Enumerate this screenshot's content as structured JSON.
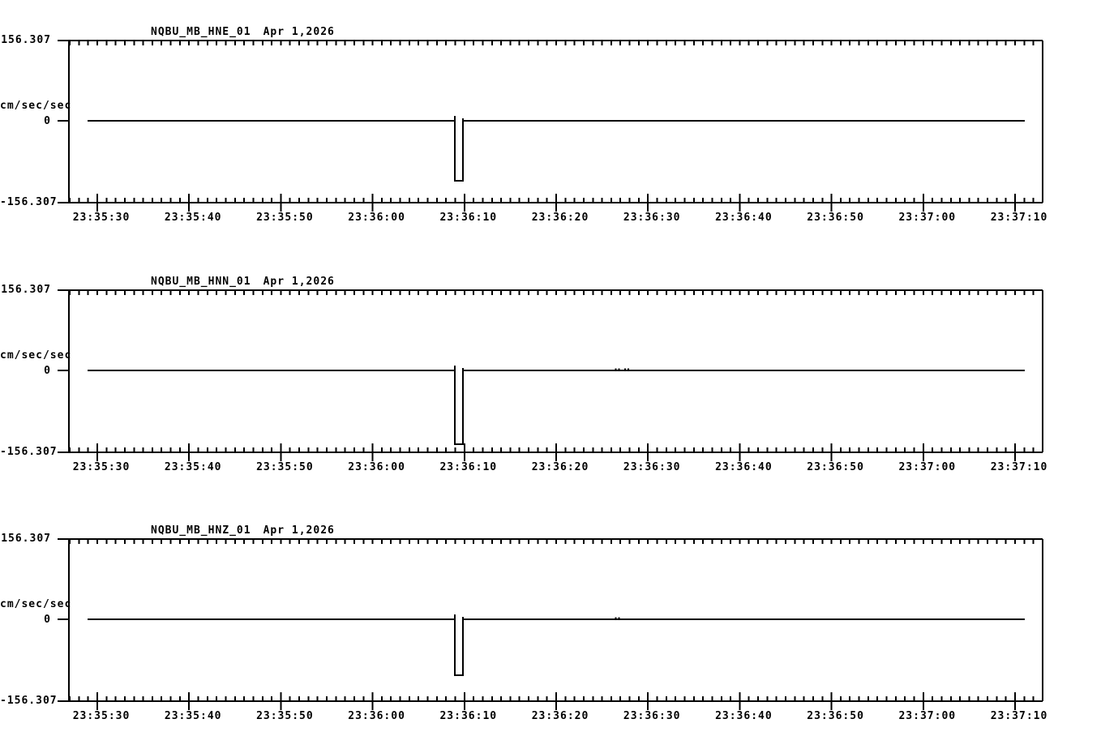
{
  "page": {
    "background_color": "#ffffff",
    "ink_color": "#000000",
    "description": "Three-component strong-motion seismograph acceleration traces"
  },
  "chart_data": [
    {
      "type": "line",
      "title": "NQBU_MB_HNE_01",
      "date_label": "Apr 1,2026",
      "ylabel": "cm/sec/sec",
      "y_tick_labels": [
        "156.307",
        "0",
        "-156.307"
      ],
      "ylim": [
        -156.307,
        156.307
      ],
      "x_tick_labels": [
        "23:35:30",
        "23:35:40",
        "23:35:50",
        "23:36:00",
        "23:36:10",
        "23:36:20",
        "23:36:30",
        "23:36:40",
        "23:36:50",
        "23:37:00",
        "23:37:10"
      ],
      "x_major_interval_s": 10,
      "x_minor_interval_s": 1,
      "x_window": {
        "start": "23:35:26.9",
        "end": "23:37:13.0"
      },
      "grid": false,
      "legend": "none",
      "baseline_value": 0,
      "pulse": {
        "start": "23:36:09.0",
        "end": "23:36:09.8",
        "start_s_after_first_tick": 38.96,
        "end_s_after_first_tick": 39.84,
        "peak": -116.9,
        "pre_spike": 9.5,
        "post_spike": 4.7
      },
      "noise_marks": []
    },
    {
      "type": "line",
      "title": "NQBU_MB_HNN_01",
      "date_label": "Apr 1,2026",
      "ylabel": "cm/sec/sec",
      "y_tick_labels": [
        "156.307",
        "0",
        "-156.307"
      ],
      "ylim": [
        -156.307,
        156.307
      ],
      "x_tick_labels": [
        "23:35:30",
        "23:35:40",
        "23:35:50",
        "23:36:00",
        "23:36:10",
        "23:36:20",
        "23:36:30",
        "23:36:40",
        "23:36:50",
        "23:37:00",
        "23:37:10"
      ],
      "x_major_interval_s": 10,
      "x_minor_interval_s": 1,
      "x_window": {
        "start": "23:35:26.9",
        "end": "23:37:13.0"
      },
      "grid": false,
      "legend": "none",
      "baseline_value": 0,
      "pulse": {
        "start": "23:36:09.0",
        "end": "23:36:09.8",
        "start_s_after_first_tick": 38.96,
        "end_s_after_first_tick": 39.84,
        "peak": -143.7,
        "pre_spike": 9.5,
        "post_spike": 4.7
      },
      "noise_marks": [
        {
          "t": "23:36:26.4",
          "s_after_first_tick": 56.4,
          "amp": 3.2
        },
        {
          "t": "23:36:27.4",
          "s_after_first_tick": 57.4,
          "amp": 3.2
        }
      ]
    },
    {
      "type": "line",
      "title": "NQBU_MB_HNZ_01",
      "date_label": "Apr 1,2026",
      "ylabel": "cm/sec/sec",
      "y_tick_labels": [
        "156.307",
        "0",
        "-156.307"
      ],
      "ylim": [
        -156.307,
        156.307
      ],
      "x_tick_labels": [
        "23:35:30",
        "23:35:40",
        "23:35:50",
        "23:36:00",
        "23:36:10",
        "23:36:20",
        "23:36:30",
        "23:36:40",
        "23:36:50",
        "23:37:00",
        "23:37:10"
      ],
      "x_major_interval_s": 10,
      "x_minor_interval_s": 1,
      "x_window": {
        "start": "23:35:26.9",
        "end": "23:37:13.0"
      },
      "grid": false,
      "legend": "none",
      "baseline_value": 0,
      "pulse": {
        "start": "23:36:09.0",
        "end": "23:36:09.8",
        "start_s_after_first_tick": 38.96,
        "end_s_after_first_tick": 39.84,
        "peak": -108.9,
        "pre_spike": 9.5,
        "post_spike": 4.7
      },
      "noise_marks": [
        {
          "t": "23:36:26.4",
          "s_after_first_tick": 56.4,
          "amp": 3.2
        }
      ]
    }
  ]
}
